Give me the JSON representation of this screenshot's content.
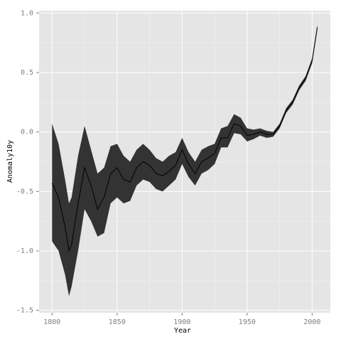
{
  "chart_data": {
    "type": "ribbon-line",
    "x_label": "Year",
    "y_label": "Anomaly10y",
    "x": [
      1800,
      1805,
      1810,
      1813,
      1815,
      1820,
      1825,
      1830,
      1835,
      1840,
      1845,
      1850,
      1855,
      1860,
      1865,
      1870,
      1875,
      1880,
      1885,
      1890,
      1895,
      1900,
      1905,
      1910,
      1915,
      1920,
      1925,
      1930,
      1935,
      1940,
      1945,
      1950,
      1955,
      1960,
      1965,
      1970,
      1975,
      1980,
      1985,
      1990,
      1995,
      2000,
      2004
    ],
    "values": [
      -0.43,
      -0.55,
      -0.8,
      -1.0,
      -0.95,
      -0.6,
      -0.3,
      -0.45,
      -0.65,
      -0.55,
      -0.35,
      -0.3,
      -0.4,
      -0.42,
      -0.3,
      -0.25,
      -0.28,
      -0.35,
      -0.37,
      -0.33,
      -0.28,
      -0.15,
      -0.27,
      -0.35,
      -0.25,
      -0.22,
      -0.18,
      -0.05,
      -0.05,
      0.07,
      0.05,
      -0.03,
      -0.02,
      0.0,
      -0.02,
      -0.02,
      0.05,
      0.18,
      0.25,
      0.37,
      0.45,
      0.6,
      0.88
    ],
    "upper": [
      0.07,
      -0.1,
      -0.4,
      -0.6,
      -0.55,
      -0.2,
      0.05,
      -0.15,
      -0.35,
      -0.3,
      -0.12,
      -0.1,
      -0.2,
      -0.25,
      -0.15,
      -0.1,
      -0.15,
      -0.22,
      -0.25,
      -0.2,
      -0.17,
      -0.05,
      -0.17,
      -0.25,
      -0.15,
      -0.12,
      -0.1,
      0.03,
      0.05,
      0.15,
      0.12,
      0.03,
      0.02,
      0.03,
      0.01,
      0.0,
      0.07,
      0.2,
      0.27,
      0.39,
      0.47,
      0.62,
      0.9
    ],
    "lower": [
      -0.92,
      -1.0,
      -1.2,
      -1.38,
      -1.3,
      -1.0,
      -0.65,
      -0.75,
      -0.88,
      -0.85,
      -0.6,
      -0.55,
      -0.6,
      -0.58,
      -0.45,
      -0.4,
      -0.42,
      -0.48,
      -0.5,
      -0.45,
      -0.4,
      -0.27,
      -0.38,
      -0.45,
      -0.35,
      -0.32,
      -0.27,
      -0.13,
      -0.13,
      -0.01,
      -0.02,
      -0.08,
      -0.06,
      -0.03,
      -0.05,
      -0.04,
      0.03,
      0.16,
      0.23,
      0.35,
      0.43,
      0.58,
      0.86
    ],
    "line_color": "#000000",
    "ribbon_color": "#333333",
    "xlim": [
      1790,
      2014
    ],
    "ylim": [
      -1.52,
      1.02
    ],
    "xticks": [
      1800,
      1850,
      1900,
      1950,
      2000
    ],
    "yticks": [
      {
        "value": 1,
        "label": "1.0"
      },
      0.5,
      {
        "value": 0,
        "label": "0.0"
      },
      -0.5,
      {
        "value": -1,
        "label": "-1.0"
      },
      -1.5
    ],
    "grid": true
  }
}
